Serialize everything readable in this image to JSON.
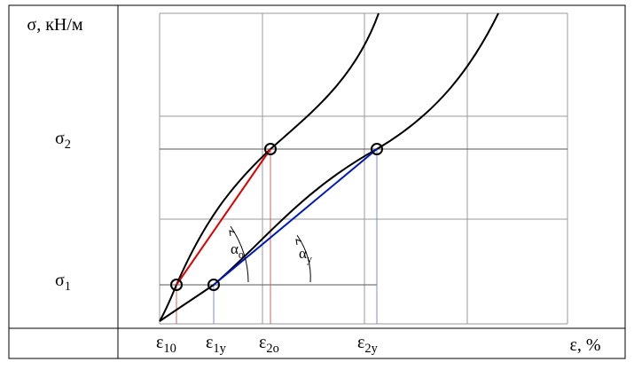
{
  "y_axis": {
    "title": "σ, кН/м",
    "levels": [
      {
        "symbol": "σ",
        "sub": "2"
      },
      {
        "symbol": "σ",
        "sub": "1"
      }
    ]
  },
  "x_axis": {
    "title": "ε, %",
    "labels": [
      {
        "symbol": "ε",
        "sub": "10"
      },
      {
        "symbol": "ε",
        "sub": "1y"
      },
      {
        "symbol": "ε",
        "sub": "2o"
      },
      {
        "symbol": "ε",
        "sub": "2y"
      }
    ]
  },
  "angles": [
    {
      "symbol": "α",
      "sub": "o"
    },
    {
      "symbol": "α",
      "sub": "y"
    }
  ]
}
